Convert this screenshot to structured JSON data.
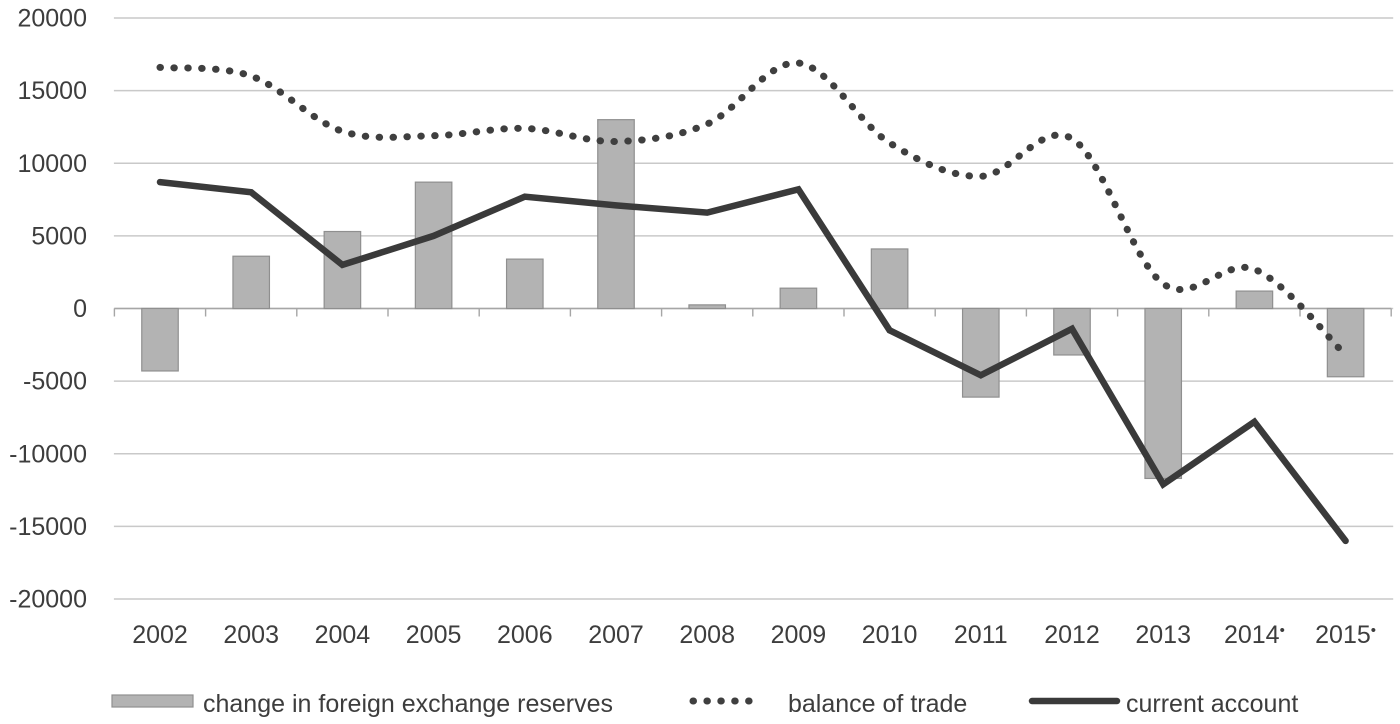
{
  "chart_data": {
    "type": "combo",
    "title": "",
    "categories": [
      "2002",
      "2003",
      "2004",
      "2005",
      "2006",
      "2007",
      "2008",
      "2009",
      "2010",
      "2011",
      "2012",
      "2013",
      "2014",
      "2015"
    ],
    "marked_categories": [
      "2014",
      "2015"
    ],
    "category_marker": "•",
    "y_axis": {
      "min": -20000,
      "max": 20000,
      "step": 5000,
      "tick_labels": [
        "20000",
        "15000",
        "10000",
        "5000",
        "0",
        "-5000",
        "-10000",
        "-15000",
        "-20000"
      ]
    },
    "grid": true,
    "legend_position": "bottom",
    "series": [
      {
        "name": "change in foreign exchange reserves",
        "type": "bar",
        "color": "#b3b3b3",
        "border_color": "#8f8f8f",
        "values": [
          -4300,
          3600,
          5300,
          8700,
          3400,
          13000,
          250,
          1400,
          4100,
          -6100,
          -3200,
          -11700,
          1200,
          -4700
        ]
      },
      {
        "name": "balance of trade",
        "type": "dotted_line",
        "color": "#3f3f3f",
        "values": [
          16600,
          16000,
          12200,
          11900,
          12400,
          11500,
          12700,
          16900,
          11400,
          9100,
          11700,
          1700,
          2700,
          -3200
        ]
      },
      {
        "name": "current account",
        "type": "solid_line",
        "color": "#3a3a3a",
        "values": [
          8700,
          8000,
          3000,
          5000,
          7700,
          7100,
          6600,
          8200,
          -1500,
          -4600,
          -1400,
          -12100,
          -7800,
          -16000
        ]
      }
    ]
  },
  "colors": {
    "background": "#ffffff",
    "gridline": "#c9c9c9",
    "axis": "#a6a6a6",
    "tick": "#a6a6a6",
    "text": "#3d3d3d"
  }
}
